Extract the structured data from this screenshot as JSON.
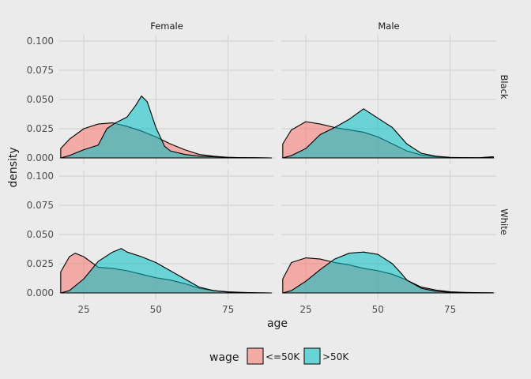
{
  "chart_data": {
    "type": "area",
    "subtype": "faceted density",
    "title": "",
    "xlabel": "age",
    "ylabel": "density",
    "xlim": [
      16.5,
      91
    ],
    "ylim": [
      0,
      0.1
    ],
    "x_ticks": [
      25,
      50,
      75
    ],
    "y_ticks": [
      0.0,
      0.025,
      0.05,
      0.075,
      0.1
    ],
    "y_tick_labels": [
      "0.000",
      "0.025",
      "0.050",
      "0.075",
      "0.100"
    ],
    "grid": true,
    "facet_columns": [
      "Female",
      "Male"
    ],
    "facet_rows": [
      "Black",
      "White"
    ],
    "legend": {
      "title": "wage",
      "position": "bottom",
      "entries": [
        {
          "label": "<=50K",
          "color": "#F8766D"
        },
        {
          "label": ">50K",
          "color": "#00BFC4"
        }
      ]
    },
    "fill_opacity": 0.55,
    "panels": [
      {
        "col": "Female",
        "row": "Black",
        "series": [
          {
            "name": "<=50K",
            "x": [
              17,
              20,
              25,
              30,
              35,
              40,
              45,
              50,
              55,
              60,
              65,
              70,
              75,
              80,
              85,
              90
            ],
            "y": [
              0.008,
              0.016,
              0.025,
              0.029,
              0.03,
              0.027,
              0.023,
              0.018,
              0.012,
              0.007,
              0.003,
              0.0015,
              0.0005,
              0.0002,
              0.0001,
              0
            ]
          },
          {
            "name": ">50K",
            "x": [
              17,
              20,
              25,
              30,
              33,
              36,
              40,
              43,
              45,
              47,
              50,
              53,
              55,
              60,
              65,
              70,
              75,
              80,
              85,
              90
            ],
            "y": [
              0,
              0.002,
              0.007,
              0.011,
              0.025,
              0.03,
              0.035,
              0.045,
              0.053,
              0.048,
              0.026,
              0.01,
              0.006,
              0.003,
              0.0015,
              0.001,
              0.0005,
              0.0002,
              0.0001,
              0
            ]
          }
        ]
      },
      {
        "col": "Male",
        "row": "Black",
        "series": [
          {
            "name": "<=50K",
            "x": [
              17,
              20,
              25,
              30,
              35,
              40,
              45,
              50,
              55,
              60,
              65,
              70,
              75,
              80,
              85,
              90
            ],
            "y": [
              0.012,
              0.024,
              0.031,
              0.029,
              0.026,
              0.024,
              0.022,
              0.018,
              0.012,
              0.006,
              0.0025,
              0.001,
              0.0004,
              0.0002,
              0.0001,
              0.001
            ]
          },
          {
            "name": ">50K",
            "x": [
              17,
              20,
              25,
              30,
              35,
              40,
              45,
              50,
              55,
              60,
              65,
              70,
              75,
              80,
              85,
              90
            ],
            "y": [
              0,
              0.002,
              0.008,
              0.02,
              0.026,
              0.033,
              0.042,
              0.034,
              0.026,
              0.012,
              0.004,
              0.0015,
              0.0005,
              0.0002,
              0.0001,
              0.001
            ]
          }
        ]
      },
      {
        "col": "Female",
        "row": "White",
        "series": [
          {
            "name": "<=50K",
            "x": [
              17,
              20,
              22,
              25,
              30,
              35,
              40,
              45,
              50,
              55,
              60,
              65,
              70,
              75,
              80,
              85,
              90
            ],
            "y": [
              0.018,
              0.031,
              0.034,
              0.031,
              0.022,
              0.021,
              0.019,
              0.016,
              0.013,
              0.011,
              0.008,
              0.004,
              0.002,
              0.001,
              0.0005,
              0.0001,
              0
            ]
          },
          {
            "name": ">50K",
            "x": [
              17,
              20,
              25,
              30,
              35,
              38,
              40,
              45,
              50,
              55,
              60,
              65,
              70,
              75,
              80,
              85,
              90
            ],
            "y": [
              0,
              0.002,
              0.012,
              0.027,
              0.035,
              0.038,
              0.035,
              0.031,
              0.026,
              0.019,
              0.012,
              0.005,
              0.002,
              0.0007,
              0.0003,
              0.0001,
              0
            ]
          }
        ]
      },
      {
        "col": "Male",
        "row": "White",
        "series": [
          {
            "name": "<=50K",
            "x": [
              17,
              20,
              25,
              30,
              35,
              40,
              45,
              50,
              55,
              60,
              65,
              70,
              75,
              80,
              85,
              90
            ],
            "y": [
              0.012,
              0.026,
              0.03,
              0.029,
              0.026,
              0.024,
              0.021,
              0.019,
              0.016,
              0.011,
              0.005,
              0.0025,
              0.001,
              0.0005,
              0.0002,
              0.0001
            ]
          },
          {
            "name": ">50K",
            "x": [
              17,
              20,
              25,
              30,
              35,
              40,
              45,
              50,
              55,
              58,
              60,
              65,
              70,
              75,
              80,
              85,
              90
            ],
            "y": [
              0,
              0.002,
              0.01,
              0.02,
              0.029,
              0.034,
              0.035,
              0.033,
              0.025,
              0.017,
              0.011,
              0.004,
              0.0015,
              0.0005,
              0.0002,
              0.0001,
              0
            ]
          }
        ]
      }
    ]
  }
}
